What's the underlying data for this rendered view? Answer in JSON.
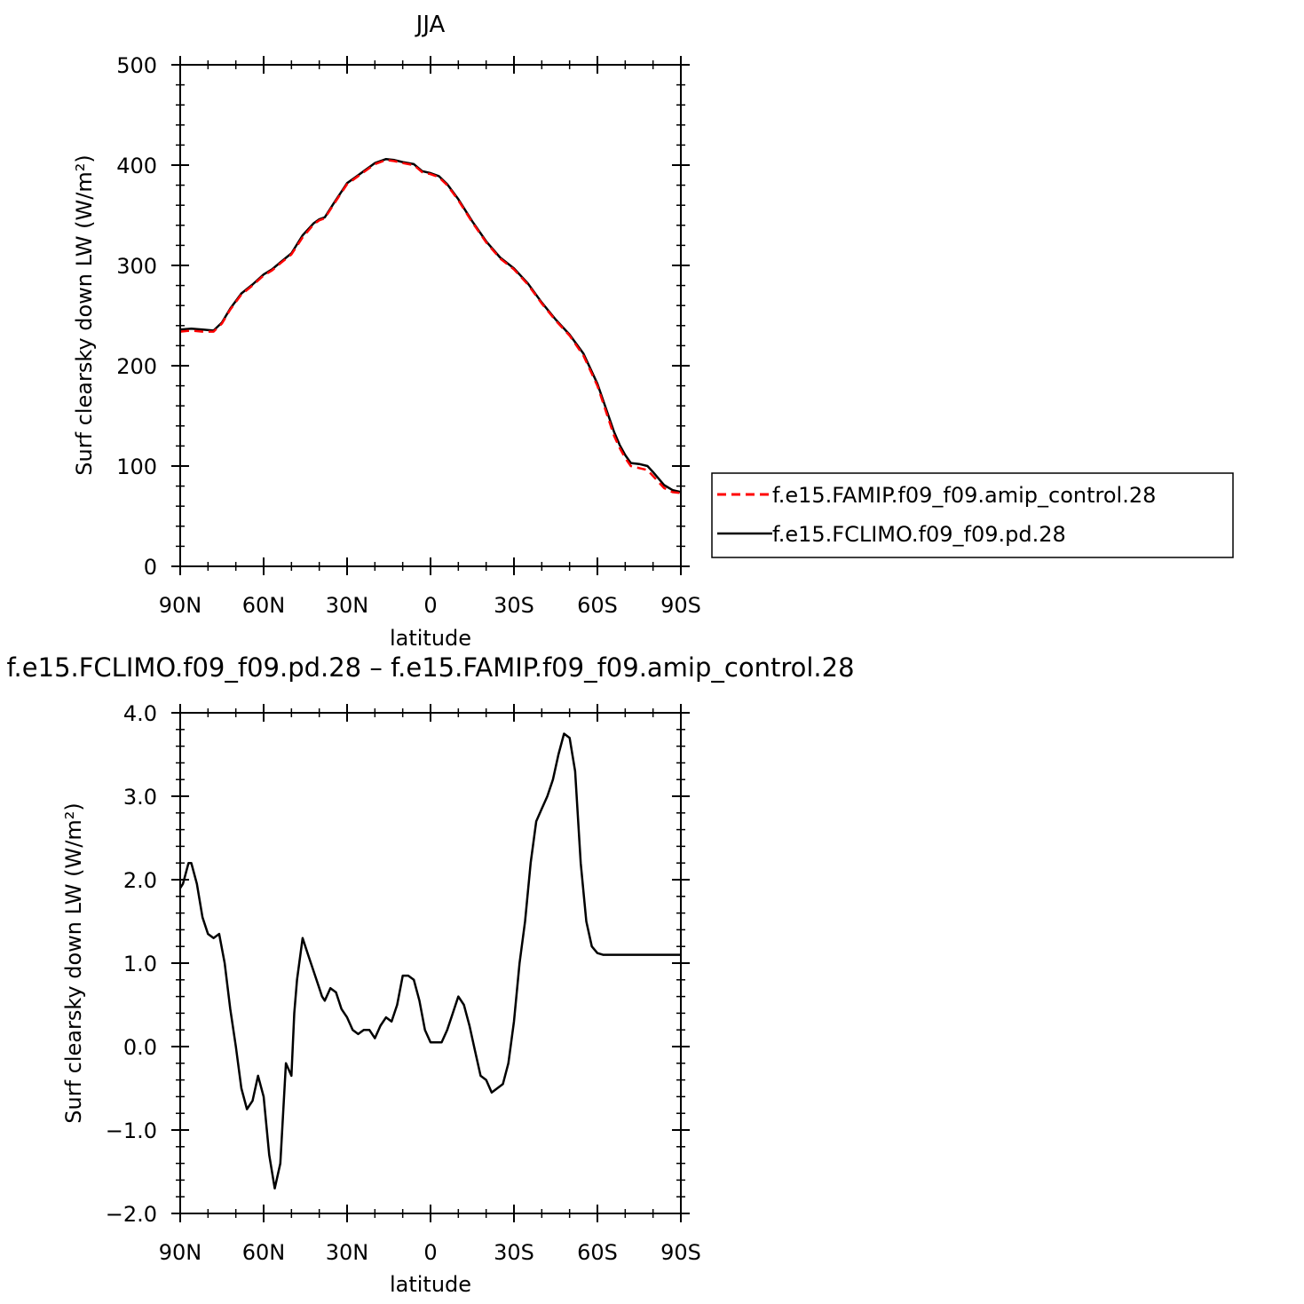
{
  "chart_data": [
    {
      "type": "line",
      "title": "JJA",
      "xlabel": "latitude",
      "ylabel": "Surf clearsky down LW (W/m²)",
      "xlim": [
        90,
        -90
      ],
      "ylim": [
        0,
        500
      ],
      "xticks": [
        90,
        60,
        30,
        0,
        -30,
        -60,
        -90
      ],
      "xtick_labels": [
        "90N",
        "60N",
        "30N",
        "0",
        "30S",
        "60S",
        "90S"
      ],
      "yticks": [
        0,
        100,
        200,
        300,
        400,
        500
      ],
      "ytick_labels": [
        "0",
        "100",
        "200",
        "300",
        "400",
        "500"
      ],
      "legend": "right",
      "series": [
        {
          "name": "f.e15.FAMIP.f09_f09.amip_control.28",
          "color": "#ff0000",
          "dash": "dashed",
          "x": [
            90,
            86,
            82,
            78,
            75,
            72,
            68,
            64,
            60,
            57,
            54,
            50,
            46,
            42,
            40,
            38,
            35,
            30,
            27,
            24,
            20,
            16,
            13,
            10,
            6,
            3,
            0,
            -3,
            -6,
            -10,
            -15,
            -20,
            -25,
            -30,
            -35,
            -40,
            -45,
            -50,
            -55,
            -60,
            -63,
            -66,
            -68,
            -70,
            -72,
            -75,
            -78,
            -80,
            -84,
            -87,
            -90
          ],
          "y": [
            234,
            235,
            234,
            234,
            242,
            256,
            271,
            280,
            290,
            295,
            302,
            311,
            328,
            341,
            345,
            347,
            360,
            381,
            387,
            393,
            401,
            405,
            404,
            402,
            400,
            393,
            391,
            388,
            380,
            365,
            343,
            323,
            307,
            296,
            281,
            262,
            245,
            230,
            210,
            180,
            155,
            130,
            118,
            108,
            100,
            98,
            96,
            90,
            78,
            74,
            73
          ]
        },
        {
          "name": "f.e15.FCLIMO.f09_f09.pd.28",
          "color": "#000000",
          "dash": "solid",
          "x": [
            90,
            86,
            82,
            78,
            75,
            72,
            68,
            64,
            60,
            57,
            54,
            50,
            46,
            42,
            40,
            38,
            35,
            30,
            27,
            24,
            20,
            16,
            13,
            10,
            6,
            3,
            0,
            -3,
            -6,
            -10,
            -15,
            -20,
            -25,
            -30,
            -35,
            -40,
            -45,
            -50,
            -55,
            -60,
            -63,
            -66,
            -68,
            -70,
            -72,
            -75,
            -78,
            -80,
            -84,
            -87,
            -90
          ],
          "y": [
            236,
            237,
            236,
            235,
            243,
            257,
            272,
            281,
            291,
            296,
            303,
            312,
            330,
            342,
            346,
            348,
            361,
            382,
            388,
            394,
            402,
            406,
            405,
            403,
            401,
            394,
            392,
            389,
            381,
            366,
            344,
            324,
            308,
            297,
            282,
            263,
            246,
            231,
            212,
            182,
            158,
            134,
            121,
            111,
            103,
            102,
            100,
            94,
            81,
            76,
            74
          ]
        }
      ]
    },
    {
      "type": "line",
      "title": "f.e15.FCLIMO.f09_f09.pd.28 – f.e15.FAMIP.f09_f09.amip_control.28",
      "xlabel": "latitude",
      "ylabel": "Surf clearsky down LW (W/m²)",
      "xlim": [
        90,
        -90
      ],
      "ylim": [
        -2.0,
        4.0
      ],
      "xticks": [
        90,
        60,
        30,
        0,
        -30,
        -60,
        -90
      ],
      "xtick_labels": [
        "90N",
        "60N",
        "30N",
        "0",
        "30S",
        "60S",
        "90S"
      ],
      "yticks": [
        -2.0,
        -1.0,
        0.0,
        1.0,
        2.0,
        3.0,
        4.0
      ],
      "ytick_labels": [
        "−2.0",
        "−1.0",
        "0.0",
        "1.0",
        "2.0",
        "3.0",
        "4.0"
      ],
      "series": [
        {
          "color": "#000000",
          "dash": "solid",
          "x": [
            90,
            89,
            87,
            86,
            84,
            82,
            80,
            78,
            76,
            74,
            72,
            70,
            68,
            66,
            64,
            62,
            60,
            58,
            56,
            54,
            52,
            50,
            49,
            48,
            46,
            44,
            42,
            40,
            39,
            38,
            36,
            34,
            32,
            30,
            28,
            26,
            24,
            22,
            20,
            18,
            16,
            14,
            12,
            10,
            8,
            6,
            4,
            2,
            0,
            -2,
            -4,
            -6,
            -8,
            -10,
            -12,
            -14,
            -16,
            -18,
            -20,
            -22,
            -24,
            -26,
            -28,
            -30,
            -32,
            -34,
            -36,
            -38,
            -40,
            -42,
            -44,
            -46,
            -48,
            -50,
            -52,
            -54,
            -56,
            -58,
            -60,
            -62,
            -64,
            -66,
            -68,
            -70,
            -72,
            -74,
            -76,
            -78,
            -80,
            -81,
            -82,
            -83,
            -84,
            -85,
            -86,
            -88,
            -90
          ],
          "y": [
            1.9,
            1.95,
            2.2,
            2.2,
            1.95,
            1.55,
            1.35,
            1.3,
            1.35,
            1.0,
            0.45,
            0.0,
            -0.5,
            -0.75,
            -0.65,
            -0.35,
            -0.6,
            -1.3,
            -1.7,
            -1.4,
            -0.2,
            -0.35,
            0.4,
            0.8,
            1.3,
            1.1,
            0.9,
            0.7,
            0.6,
            0.55,
            0.7,
            0.65,
            0.45,
            0.35,
            0.2,
            0.15,
            0.2,
            0.2,
            0.1,
            0.25,
            0.35,
            0.3,
            0.5,
            0.85,
            0.85,
            0.8,
            0.55,
            0.2,
            0.05,
            0.05,
            0.05,
            0.2,
            0.4,
            0.6,
            0.5,
            0.25,
            -0.05,
            -0.35,
            -0.4,
            -0.55,
            -0.5,
            -0.45,
            -0.2,
            0.3,
            1.0,
            1.5,
            2.2,
            2.7,
            2.85,
            3.0,
            3.2,
            3.5,
            3.75,
            3.7,
            3.3,
            2.2,
            1.5,
            1.2,
            1.12,
            1.1,
            1.1,
            1.1,
            1.1,
            1.1,
            1.1,
            1.1,
            1.1,
            1.1,
            1.1,
            1.1,
            1.1,
            1.1,
            1.1,
            1.1,
            1.1,
            1.1,
            1.1
          ]
        }
      ]
    }
  ]
}
